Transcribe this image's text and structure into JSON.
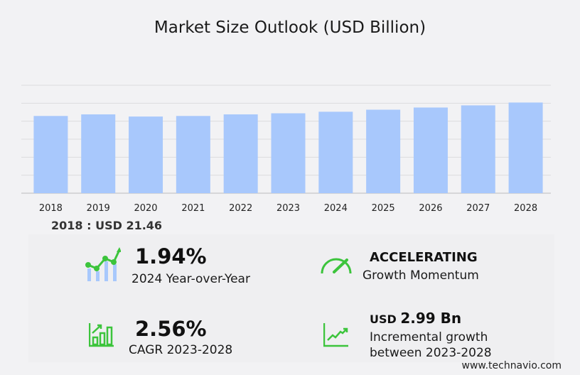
{
  "title": "Market Size Outlook (USD Billion)",
  "chart_data": {
    "type": "bar",
    "title": "Market Size Outlook (USD Billion)",
    "categories": [
      "2018",
      "2019",
      "2020",
      "2021",
      "2022",
      "2023",
      "2024",
      "2025",
      "2026",
      "2027",
      "2028"
    ],
    "values": [
      21.46,
      21.9,
      21.3,
      21.46,
      21.9,
      22.2,
      22.63,
      23.2,
      23.8,
      24.4,
      25.19
    ],
    "ylim": [
      0,
      30
    ],
    "grid": true,
    "bar_color": "#a8c8fc"
  },
  "latest": {
    "label": "2018 : USD  21.46"
  },
  "kpis": {
    "yoy": {
      "value": "1.94%",
      "label": "2024 Year-over-Year"
    },
    "momentum": {
      "value": "ACCELERATING",
      "label": "Growth Momentum"
    },
    "cagr": {
      "value": "2.56%",
      "label": "CAGR 2023-2028"
    },
    "incremental": {
      "prefix": "USD",
      "value": "2.99 Bn",
      "label1": "Incremental growth",
      "label2": "between 2023-2028"
    }
  },
  "accent": "#3cc43c",
  "footer": "www.technavio.com"
}
